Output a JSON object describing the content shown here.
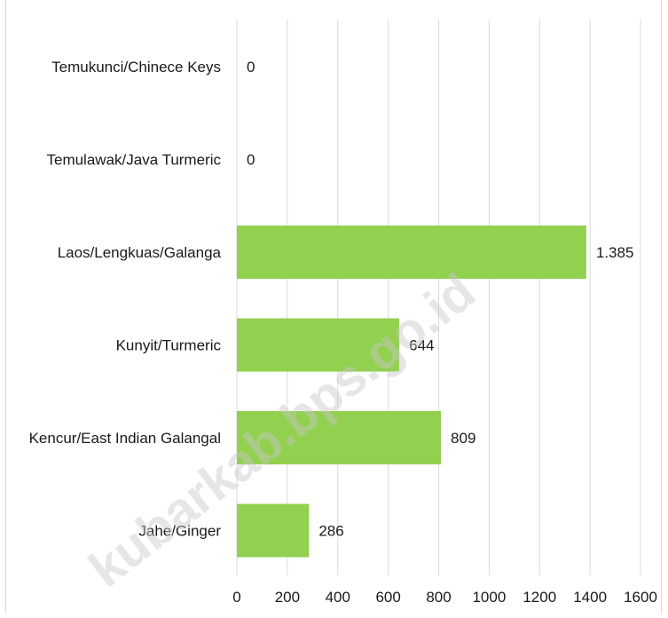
{
  "watermark": "kubarkab.bps.go.id",
  "chart_data": {
    "type": "bar",
    "orientation": "horizontal",
    "categories": [
      "Temukunci/Chinece Keys",
      "Temulawak/Java Turmeric",
      "Laos/Lengkuas/Galanga",
      "Kunyit/Turmeric",
      "Kencur/East Indian Galangal",
      "Jahe/Ginger"
    ],
    "values": [
      0,
      0,
      1385,
      644,
      809,
      286
    ],
    "value_labels": [
      "0",
      "0",
      "1.385",
      "644",
      "809",
      "286"
    ],
    "xlim": [
      0,
      1600
    ],
    "x_ticks": [
      0,
      200,
      400,
      600,
      800,
      1000,
      1200,
      1400,
      1600
    ],
    "grid": "vertical",
    "bar_color": "#92d050",
    "grid_color": "#d9d9d9",
    "legend": "none"
  }
}
